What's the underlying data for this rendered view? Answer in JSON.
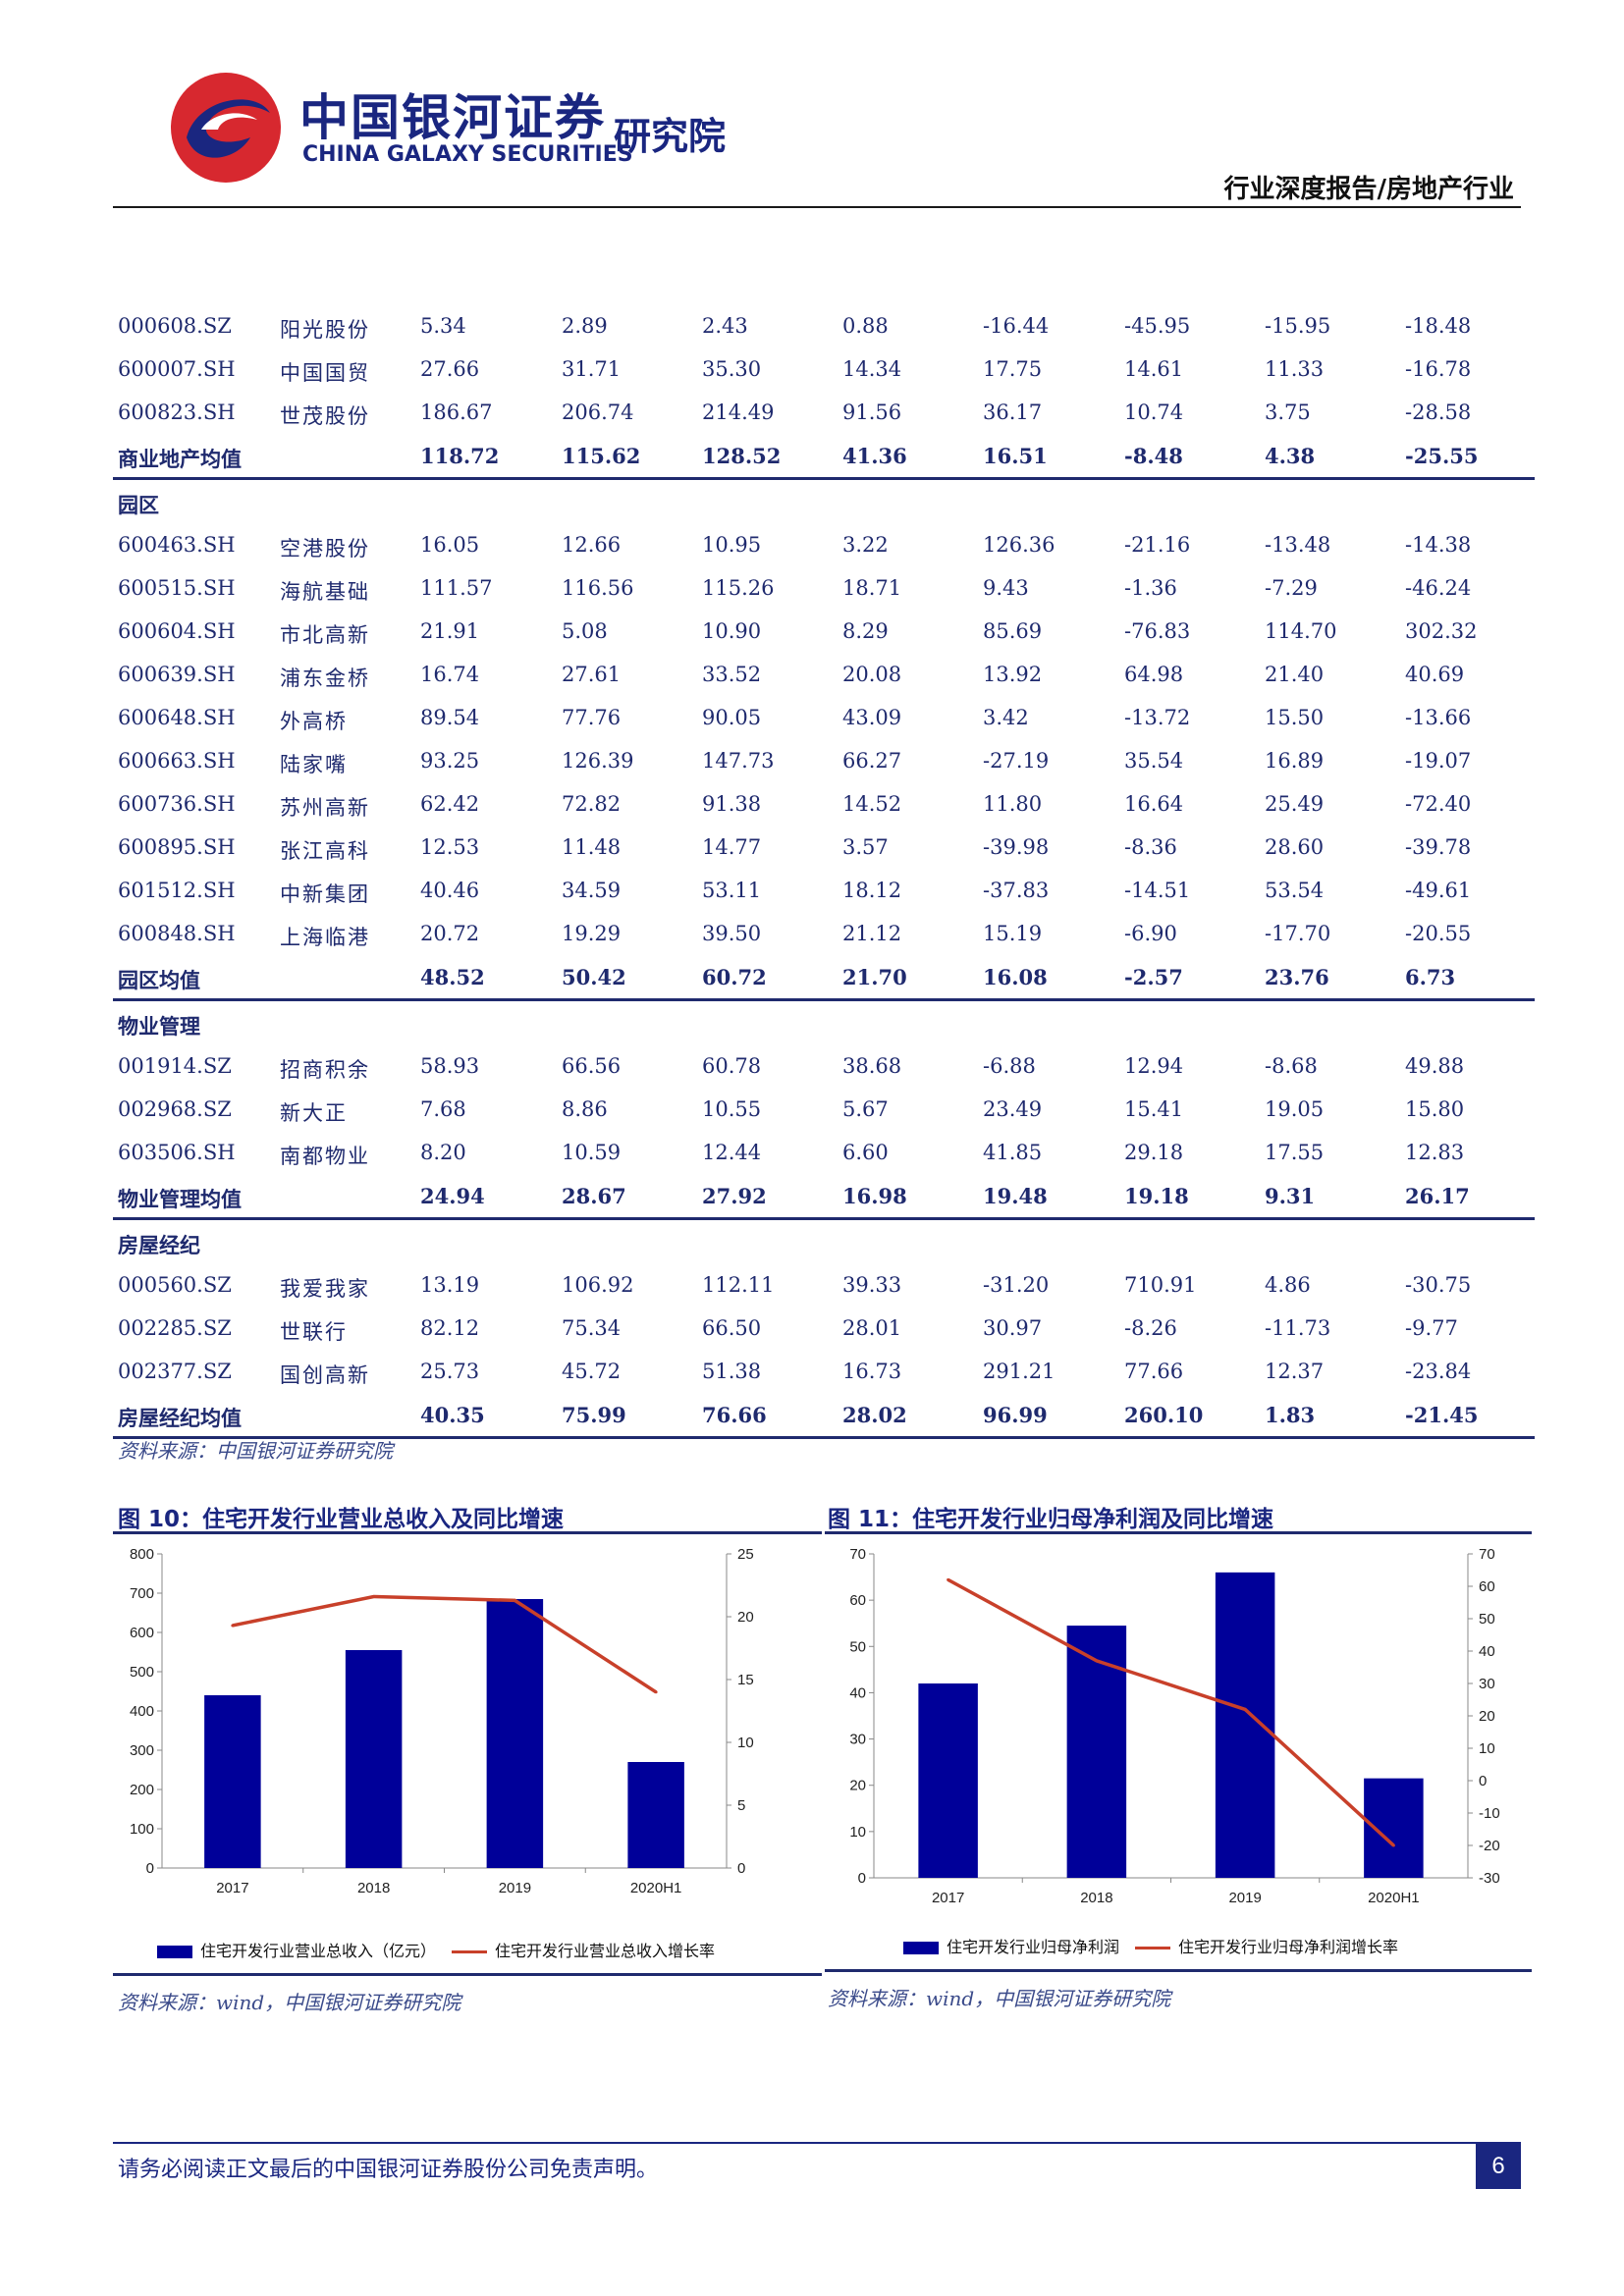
{
  "header": {
    "logo_cn": "中国银河证券",
    "logo_en": "CHINA GALAXY SECURITIES",
    "logo_institute": "研究院",
    "report_type": "行业深度报告/房地产行业"
  },
  "table": {
    "rows": [
      {
        "kind": "data",
        "cells": [
          "000608.SZ",
          "阳光股份",
          "5.34",
          "2.89",
          "2.43",
          "0.88",
          "-16.44",
          "-45.95",
          "-15.95",
          "-18.48"
        ]
      },
      {
        "kind": "data",
        "cells": [
          "600007.SH",
          "中国国贸",
          "27.66",
          "31.71",
          "35.30",
          "14.34",
          "17.75",
          "14.61",
          "11.33",
          "-16.78"
        ]
      },
      {
        "kind": "data",
        "cells": [
          "600823.SH",
          "世茂股份",
          "186.67",
          "206.74",
          "214.49",
          "91.56",
          "36.17",
          "10.74",
          "3.75",
          "-28.58"
        ]
      },
      {
        "kind": "avg",
        "cells": [
          "商业地产均值",
          "",
          "118.72",
          "115.62",
          "128.52",
          "41.36",
          "16.51",
          "-8.48",
          "4.38",
          "-25.55"
        ]
      },
      {
        "kind": "section",
        "cells": [
          "园区"
        ]
      },
      {
        "kind": "data",
        "cells": [
          "600463.SH",
          "空港股份",
          "16.05",
          "12.66",
          "10.95",
          "3.22",
          "126.36",
          "-21.16",
          "-13.48",
          "-14.38"
        ]
      },
      {
        "kind": "data",
        "cells": [
          "600515.SH",
          "海航基础",
          "111.57",
          "116.56",
          "115.26",
          "18.71",
          "9.43",
          "-1.36",
          "-7.29",
          "-46.24"
        ]
      },
      {
        "kind": "data",
        "cells": [
          "600604.SH",
          "市北高新",
          "21.91",
          "5.08",
          "10.90",
          "8.29",
          "85.69",
          "-76.83",
          "114.70",
          "302.32"
        ]
      },
      {
        "kind": "data",
        "cells": [
          "600639.SH",
          "浦东金桥",
          "16.74",
          "27.61",
          "33.52",
          "20.08",
          "13.92",
          "64.98",
          "21.40",
          "40.69"
        ]
      },
      {
        "kind": "data",
        "cells": [
          "600648.SH",
          "外高桥",
          "89.54",
          "77.76",
          "90.05",
          "43.09",
          "3.42",
          "-13.72",
          "15.50",
          "-13.66"
        ]
      },
      {
        "kind": "data",
        "cells": [
          "600663.SH",
          "陆家嘴",
          "93.25",
          "126.39",
          "147.73",
          "66.27",
          "-27.19",
          "35.54",
          "16.89",
          "-19.07"
        ]
      },
      {
        "kind": "data",
        "cells": [
          "600736.SH",
          "苏州高新",
          "62.42",
          "72.82",
          "91.38",
          "14.52",
          "11.80",
          "16.64",
          "25.49",
          "-72.40"
        ]
      },
      {
        "kind": "data",
        "cells": [
          "600895.SH",
          "张江高科",
          "12.53",
          "11.48",
          "14.77",
          "3.57",
          "-39.98",
          "-8.36",
          "28.60",
          "-39.78"
        ]
      },
      {
        "kind": "data",
        "cells": [
          "601512.SH",
          "中新集团",
          "40.46",
          "34.59",
          "53.11",
          "18.12",
          "-37.83",
          "-14.51",
          "53.54",
          "-49.61"
        ]
      },
      {
        "kind": "data",
        "cells": [
          "600848.SH",
          "上海临港",
          "20.72",
          "19.29",
          "39.50",
          "21.12",
          "15.19",
          "-6.90",
          "-17.70",
          "-20.55"
        ]
      },
      {
        "kind": "avg",
        "cells": [
          "园区均值",
          "",
          "48.52",
          "50.42",
          "60.72",
          "21.70",
          "16.08",
          "-2.57",
          "23.76",
          "6.73"
        ]
      },
      {
        "kind": "section",
        "cells": [
          "物业管理"
        ]
      },
      {
        "kind": "data",
        "cells": [
          "001914.SZ",
          "招商积余",
          "58.93",
          "66.56",
          "60.78",
          "38.68",
          "-6.88",
          "12.94",
          "-8.68",
          "49.88"
        ]
      },
      {
        "kind": "data",
        "cells": [
          "002968.SZ",
          "新大正",
          "7.68",
          "8.86",
          "10.55",
          "5.67",
          "23.49",
          "15.41",
          "19.05",
          "15.80"
        ]
      },
      {
        "kind": "data",
        "cells": [
          "603506.SH",
          "南都物业",
          "8.20",
          "10.59",
          "12.44",
          "6.60",
          "41.85",
          "29.18",
          "17.55",
          "12.83"
        ]
      },
      {
        "kind": "avg",
        "cells": [
          "物业管理均值",
          "",
          "24.94",
          "28.67",
          "27.92",
          "16.98",
          "19.48",
          "19.18",
          "9.31",
          "26.17"
        ]
      },
      {
        "kind": "section",
        "cells": [
          "房屋经纪"
        ]
      },
      {
        "kind": "data",
        "cells": [
          "000560.SZ",
          "我爱我家",
          "13.19",
          "106.92",
          "112.11",
          "39.33",
          "-31.20",
          "710.91",
          "4.86",
          "-30.75"
        ]
      },
      {
        "kind": "data",
        "cells": [
          "002285.SZ",
          "世联行",
          "82.12",
          "75.34",
          "66.50",
          "28.01",
          "30.97",
          "-8.26",
          "-11.73",
          "-9.77"
        ]
      },
      {
        "kind": "data",
        "cells": [
          "002377.SZ",
          "国创高新",
          "25.73",
          "45.72",
          "51.38",
          "16.73",
          "291.21",
          "77.66",
          "12.37",
          "-23.84"
        ]
      },
      {
        "kind": "avg",
        "cells": [
          "房屋经纪均值",
          "",
          "40.35",
          "75.99",
          "76.66",
          "28.02",
          "96.99",
          "260.10",
          "1.83",
          "-21.45"
        ]
      }
    ],
    "source": "资料来源：中国银河证券研究院"
  },
  "figures": [
    {
      "title": "图 10：住宅开发行业营业总收入及同比增速",
      "source": "资料来源：wind，中国银河证券研究院",
      "legend_bar": "住宅开发行业营业总收入（亿元）",
      "legend_line": "住宅开发行业营业总收入增长率"
    },
    {
      "title": "图 11：住宅开发行业归母净利润及同比增速",
      "source": "资料来源：wind，中国银河证券研究院",
      "legend_bar": "住宅开发行业归母净利润",
      "legend_line": "住宅开发行业归母净利润增长率"
    }
  ],
  "chart_data": [
    {
      "type": "bar",
      "categories": [
        "2017",
        "2018",
        "2019",
        "2020H1"
      ],
      "series": [
        {
          "name": "住宅开发行业营业总收入（亿元）",
          "type": "bar",
          "axis": "left",
          "values": [
            440,
            555,
            685,
            270
          ]
        },
        {
          "name": "住宅开发行业营业总收入增长率",
          "type": "line",
          "axis": "right",
          "values": [
            19.3,
            21.6,
            21.3,
            14.0
          ]
        }
      ],
      "ylim_left": [
        0,
        800
      ],
      "yticks_left": [
        0,
        100,
        200,
        300,
        400,
        500,
        600,
        700,
        800
      ],
      "ylim_right": [
        0,
        25
      ],
      "yticks_right": [
        0,
        5,
        10,
        15,
        20,
        25
      ],
      "bar_color": "#000099",
      "line_color": "#c8402a",
      "legend": "bottom"
    },
    {
      "type": "bar",
      "categories": [
        "2017",
        "2018",
        "2019",
        "2020H1"
      ],
      "series": [
        {
          "name": "住宅开发行业归母净利润",
          "type": "bar",
          "axis": "left",
          "values": [
            42,
            54.5,
            66,
            21.5
          ]
        },
        {
          "name": "住宅开发行业归母净利润增长率",
          "type": "line",
          "axis": "right",
          "values": [
            62,
            37,
            22,
            -20
          ]
        }
      ],
      "ylim_left": [
        0,
        70
      ],
      "yticks_left": [
        0,
        10,
        20,
        30,
        40,
        50,
        60,
        70
      ],
      "ylim_right": [
        -30,
        70
      ],
      "yticks_right": [
        -30,
        -20,
        -10,
        0,
        10,
        20,
        30,
        40,
        50,
        60,
        70
      ],
      "bar_color": "#000099",
      "line_color": "#c8402a",
      "legend": "bottom"
    }
  ],
  "footer": {
    "disclaimer": "请务必阅读正文最后的中国银河证券股份公司免责声明。",
    "page_number": "6"
  }
}
